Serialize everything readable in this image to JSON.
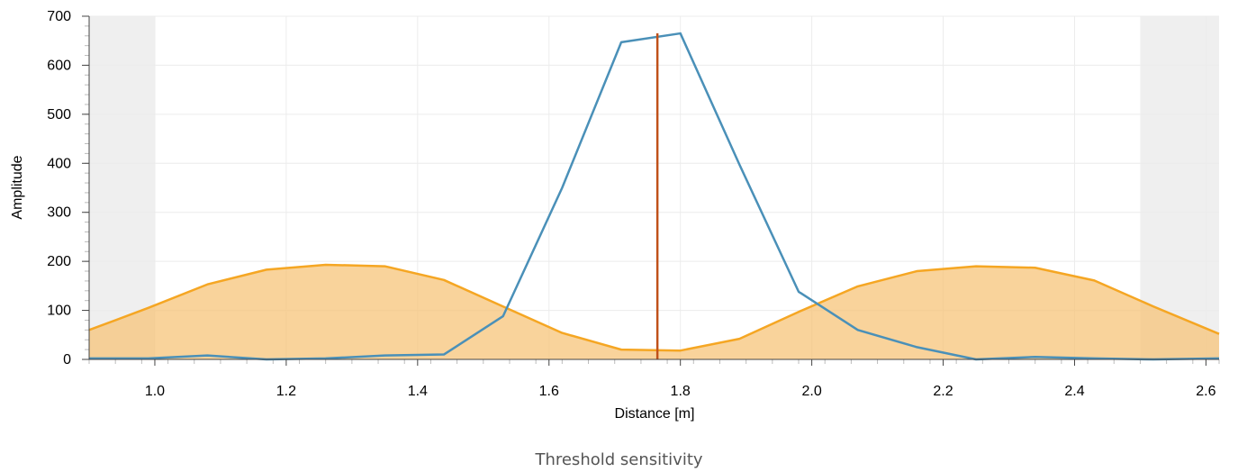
{
  "chart_data": {
    "type": "area",
    "title": "",
    "xlabel": "Distance [m]",
    "ylabel": "Amplitude",
    "xlim": [
      0.9,
      2.62
    ],
    "ylim": [
      0,
      700
    ],
    "grid": true,
    "x_ticks": [
      "1.0",
      "1.2",
      "1.4",
      "1.6",
      "1.8",
      "2.0",
      "2.2",
      "2.4",
      "2.6"
    ],
    "y_ticks": [
      "0",
      "100",
      "200",
      "300",
      "400",
      "500",
      "600",
      "700"
    ],
    "shaded_regions": [
      {
        "x_start": 0.9,
        "x_end": 1.0,
        "color": "#efefef"
      },
      {
        "x_start": 2.5,
        "x_end": 2.62,
        "color": "#efefef"
      }
    ],
    "threshold": {
      "color": "#f5a623",
      "fill": "#f7c47a",
      "x": [
        0.9,
        0.99,
        1.08,
        1.17,
        1.26,
        1.35,
        1.44,
        1.53,
        1.62,
        1.71,
        1.8,
        1.89,
        1.98,
        2.07,
        2.16,
        2.25,
        2.34,
        2.43,
        2.52,
        2.62
      ],
      "values": [
        60,
        105,
        153,
        183,
        193,
        190,
        162,
        108,
        54,
        20,
        18,
        42,
        97,
        149,
        180,
        190,
        187,
        161,
        108,
        52
      ]
    },
    "signal": {
      "color": "#4a90b8",
      "x": [
        0.9,
        0.99,
        1.08,
        1.17,
        1.26,
        1.35,
        1.44,
        1.53,
        1.62,
        1.71,
        1.8,
        1.89,
        1.98,
        2.07,
        2.16,
        2.25,
        2.34,
        2.43,
        2.52,
        2.62
      ],
      "values": [
        2,
        2,
        8,
        0,
        2,
        8,
        10,
        88,
        350,
        647,
        665,
        397,
        138,
        60,
        25,
        0,
        5,
        2,
        0,
        2
      ]
    },
    "marker": {
      "x": 1.765,
      "y_top": 665,
      "color": "#c0511a"
    }
  },
  "caption": "Threshold sensitivity"
}
